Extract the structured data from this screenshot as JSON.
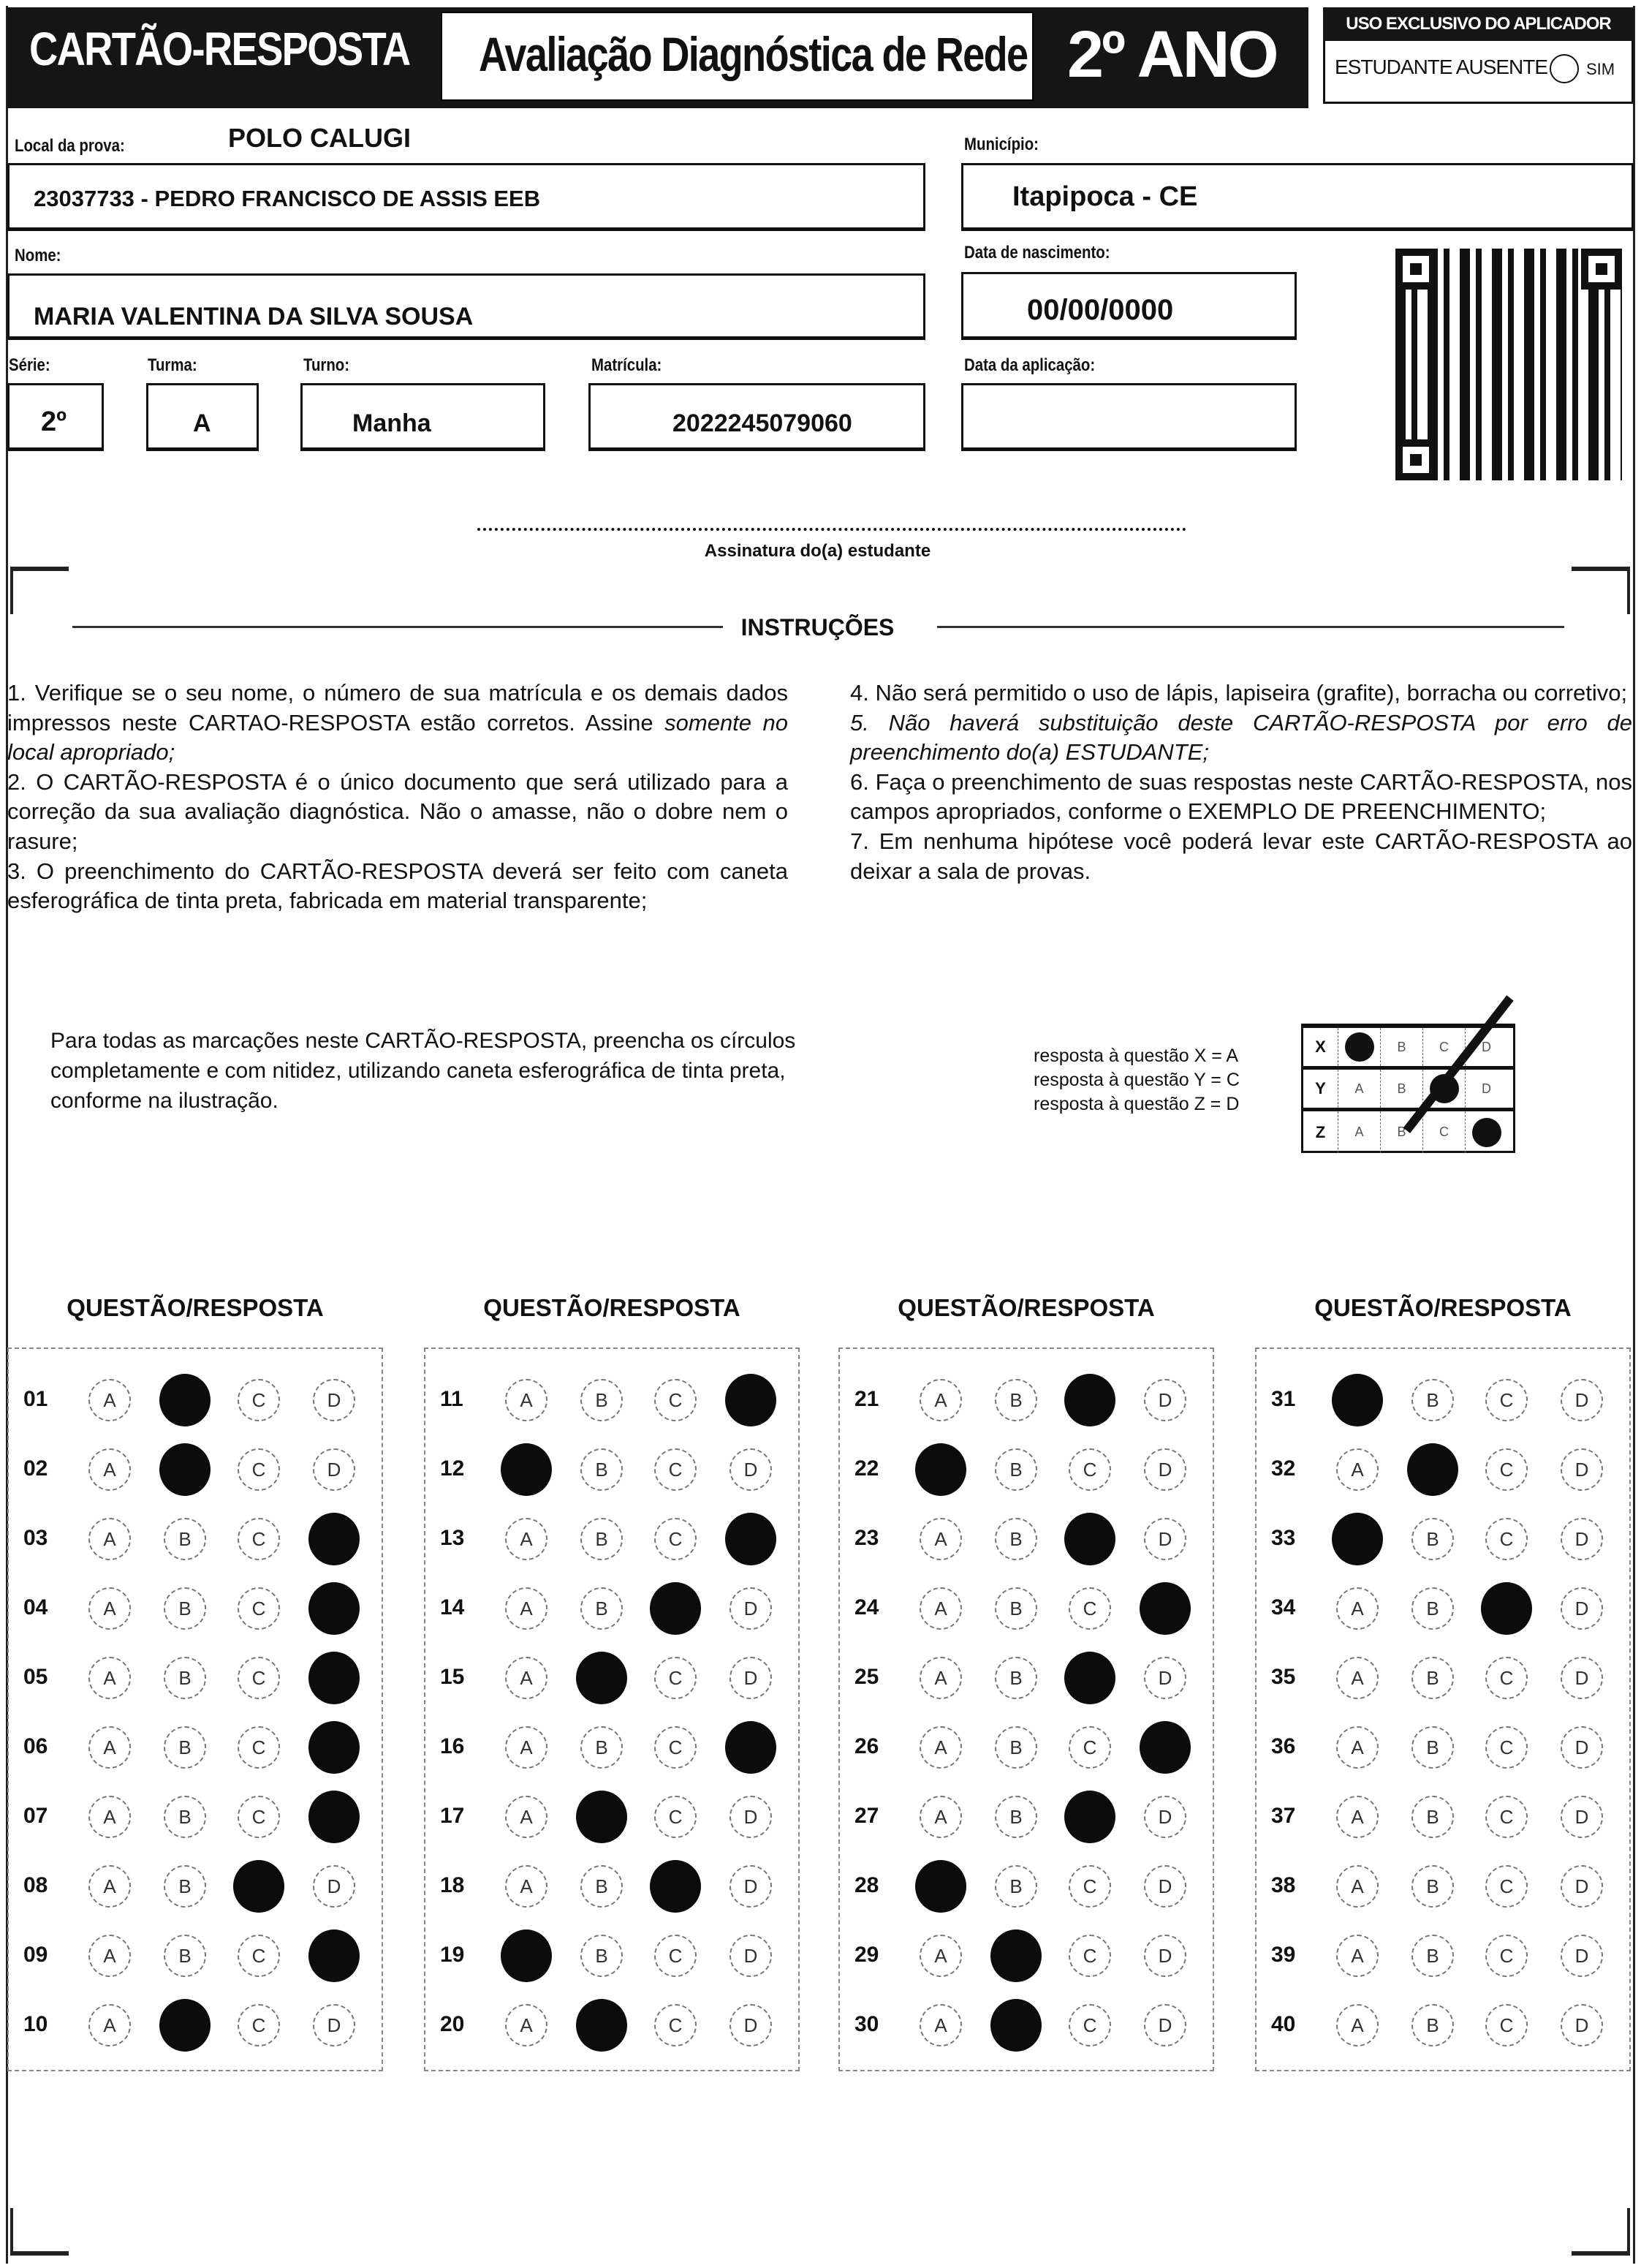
{
  "header": {
    "card_title": "CARTÃO-RESPOSTA",
    "exam_title": "Avaliação Diagnóstica de Rede",
    "grade": "2º ANO",
    "applicator": {
      "heading": "USO EXCLUSIVO DO APLICADOR",
      "absent_label": "ESTUDANTE AUSENTE",
      "option": "SIM"
    }
  },
  "student": {
    "local_label": "Local da prova:",
    "polo": "POLO CALUGI",
    "school": "23037733 - PEDRO FRANCISCO DE ASSIS EEB",
    "municipio_label": "Município:",
    "municipio": "Itapipoca - CE",
    "nome_label": "Nome:",
    "nome": "MARIA VALENTINA DA SILVA SOUSA",
    "nascimento_label": "Data de nascimento:",
    "nascimento": "00/00/0000",
    "serie_label": "Série:",
    "serie": "2º",
    "turma_label": "Turma:",
    "turma": "A",
    "turno_label": "Turno:",
    "turno": "Manha",
    "matricula_label": "Matrícula:",
    "matricula": "2022245079060",
    "aplicacao_label": "Data da aplicação:",
    "aplicacao": ""
  },
  "signature_label": "Assinatura do(a) estudante",
  "instructions": {
    "title": "INSTRUÇÕES",
    "left": [
      "1. Verifique se o seu nome, o número de sua matrícula e os demais dados impressos neste CARTAO-RESPOSTA estão corretos. Assine ",
      "somente no local apropriado;",
      "2. O CARTÃO-RESPOSTA é o único documento que será utilizado para a correção da sua avaliação diagnóstica. Não o amasse, não o dobre nem o rasure;",
      "3. O preenchimento do CARTÃO-RESPOSTA deverá ser feito com caneta esferográfica de tinta preta, fabricada em material transparente;"
    ],
    "right": [
      "4. Não será permitido o uso de lápis, lapiseira (grafite), borracha ou corretivo;",
      "5. Não haverá substituição deste CARTÃO-RESPOSTA por erro de preenchimento do(a) ESTUDANTE;",
      "6. Faça o preenchimento de suas respostas neste CARTÃO-RESPOSTA, nos campos apropriados, conforme o EXEMPLO DE PREENCHIMENTO;",
      "7. Em nenhuma hipótese você poderá levar este CARTÃO-RESPOSTA ao deixar a sala de provas."
    ]
  },
  "fill_note": "Para todas as marcações neste CARTÃO-RESPOSTA, preencha os círculos completamente e com nitidez, utilizando caneta esferográfica de tinta preta, conforme na ilustração.",
  "example": {
    "lines": [
      "resposta à questão X = A",
      "resposta à questão Y = C",
      "resposta à questão Z = D"
    ],
    "rows": [
      {
        "q": "X",
        "marked": "A"
      },
      {
        "q": "Y",
        "marked": "C"
      },
      {
        "q": "Z",
        "marked": "D"
      }
    ]
  },
  "options": [
    "A",
    "B",
    "C",
    "D"
  ],
  "section_heading": "QUESTÃO/RESPOSTA",
  "answers": [
    {
      "n": "01",
      "m": "B"
    },
    {
      "n": "02",
      "m": "B"
    },
    {
      "n": "03",
      "m": "D"
    },
    {
      "n": "04",
      "m": "D"
    },
    {
      "n": "05",
      "m": "D"
    },
    {
      "n": "06",
      "m": "D"
    },
    {
      "n": "07",
      "m": "D"
    },
    {
      "n": "08",
      "m": "C"
    },
    {
      "n": "09",
      "m": "D"
    },
    {
      "n": "10",
      "m": "B"
    },
    {
      "n": "11",
      "m": "D"
    },
    {
      "n": "12",
      "m": "A"
    },
    {
      "n": "13",
      "m": "D"
    },
    {
      "n": "14",
      "m": "C"
    },
    {
      "n": "15",
      "m": "B"
    },
    {
      "n": "16",
      "m": "D"
    },
    {
      "n": "17",
      "m": "B"
    },
    {
      "n": "18",
      "m": "C"
    },
    {
      "n": "19",
      "m": "A"
    },
    {
      "n": "20",
      "m": "B"
    },
    {
      "n": "21",
      "m": "C"
    },
    {
      "n": "22",
      "m": "A"
    },
    {
      "n": "23",
      "m": "C"
    },
    {
      "n": "24",
      "m": "D"
    },
    {
      "n": "25",
      "m": "C"
    },
    {
      "n": "26",
      "m": "D"
    },
    {
      "n": "27",
      "m": "C"
    },
    {
      "n": "28",
      "m": "A"
    },
    {
      "n": "29",
      "m": "B"
    },
    {
      "n": "30",
      "m": "B"
    },
    {
      "n": "31",
      "m": "A"
    },
    {
      "n": "32",
      "m": "B"
    },
    {
      "n": "33",
      "m": "A"
    },
    {
      "n": "34",
      "m": "C"
    },
    {
      "n": "35",
      "m": ""
    },
    {
      "n": "36",
      "m": ""
    },
    {
      "n": "37",
      "m": ""
    },
    {
      "n": "38",
      "m": ""
    },
    {
      "n": "39",
      "m": ""
    },
    {
      "n": "40",
      "m": ""
    }
  ]
}
